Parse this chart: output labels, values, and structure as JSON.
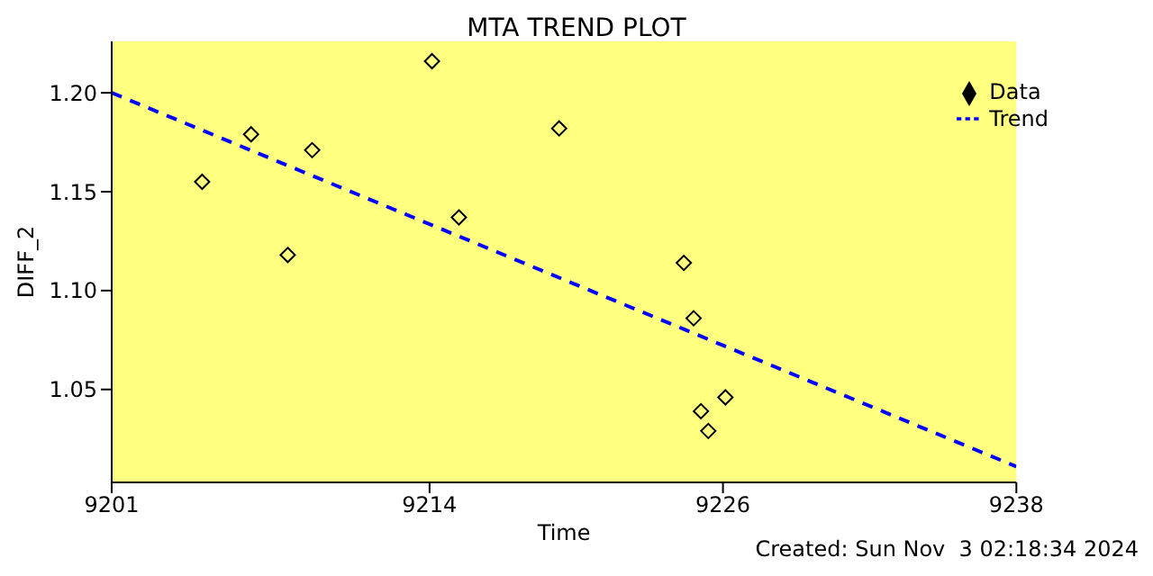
{
  "chart_data": {
    "type": "scatter",
    "title": "MTA TREND PLOT",
    "xlabel": "Time",
    "ylabel": "DIFF_2",
    "annotations": [
      "Created: Sun Nov  3 02:18:34 2024"
    ],
    "xlim": [
      9201,
      9238
    ],
    "xticks": [
      9201,
      9214,
      9226,
      9238
    ],
    "ylim": [
      1.003,
      1.226
    ],
    "yticks": [
      {
        "value": 1.05,
        "label": "1.05"
      },
      {
        "value": 1.1,
        "label": "1.10"
      },
      {
        "value": 1.15,
        "label": "1.15"
      },
      {
        "value": 1.2,
        "label": "1.20"
      }
    ],
    "grid": false,
    "legend": "top right",
    "series": [
      {
        "name": "Data",
        "marker": "diamond",
        "color": "#000000",
        "x": [
          9204.7,
          9206.7,
          9208.2,
          9209.2,
          9214.1,
          9215.2,
          9219.3,
          9224.4,
          9224.8,
          9225.1,
          9225.4,
          9226.1
        ],
        "values": [
          1.155,
          1.179,
          1.118,
          1.171,
          1.216,
          1.137,
          1.182,
          1.114,
          1.086,
          1.039,
          1.029,
          1.046
        ]
      },
      {
        "name": "Trend",
        "type": "line",
        "color": "#0000ff",
        "line_style": "dashed",
        "marker": "none",
        "x": [
          9201,
          9238
        ],
        "values": [
          1.2,
          1.011
        ]
      }
    ]
  }
}
